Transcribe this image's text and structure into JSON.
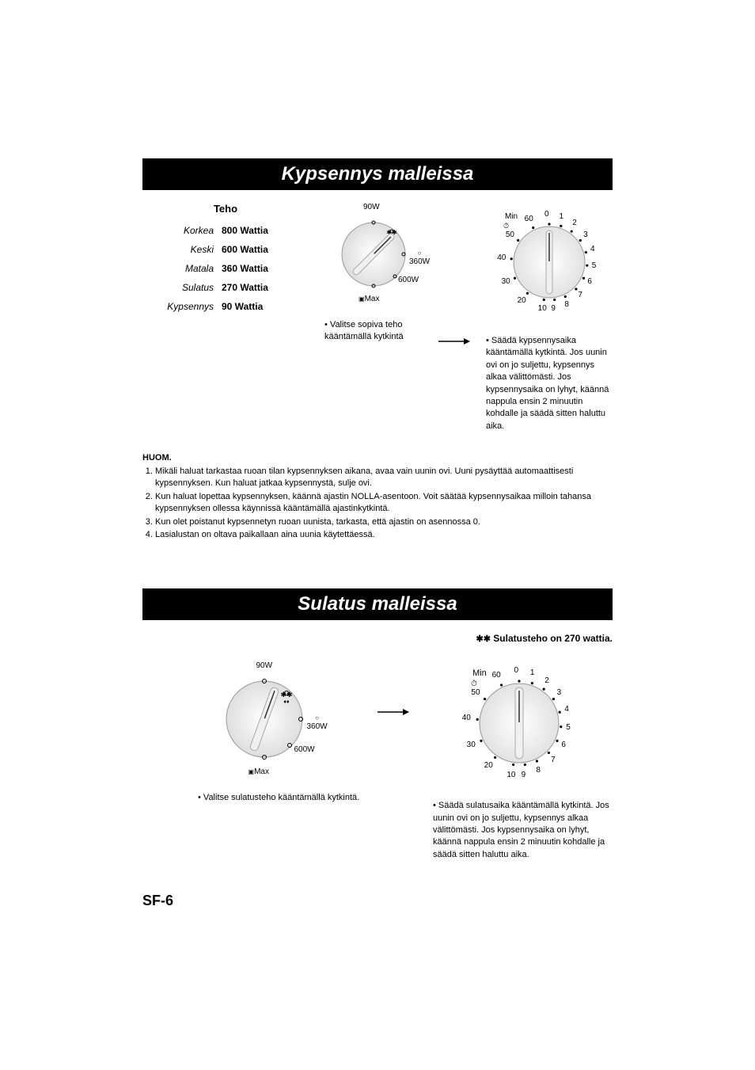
{
  "section1": {
    "title": "Kypsennys malleissa",
    "teho_header": "Teho",
    "power_rows": [
      {
        "label": "Korkea",
        "value": "800 Wattia"
      },
      {
        "label": "Keski",
        "value": "600 Wattia"
      },
      {
        "label": "Matala",
        "value": "360 Wattia"
      },
      {
        "label": "Sulatus",
        "value": "270 Wattia"
      },
      {
        "label": "Kypsennys",
        "value": "90 Wattia"
      }
    ],
    "power_dial": {
      "labels": {
        "top": "90W",
        "right_mid": "360W",
        "bottom_right": "600W",
        "bottom": "Max"
      },
      "pointer_angle_deg": 45
    },
    "timer_dial": {
      "title": "Min",
      "outer_marks": [
        "0",
        "1",
        "2",
        "3",
        "4",
        "5",
        "6",
        "7",
        "8",
        "9",
        "10",
        "20",
        "30",
        "40",
        "50",
        "60"
      ]
    },
    "power_instruction": "Valitse sopiva teho kääntämällä kytkintä",
    "timer_instruction": "Säädä kypsennysaika kääntämällä kytkintä. Jos uunin ovi on jo suljettu, kypsennys alkaa välittömästi. Jos kypsennysaika on lyhyt, käännä nappula ensin 2 minuutin kohdalle ja säädä sitten haluttu aika."
  },
  "notes": {
    "header": "HUOM.",
    "items": [
      "Mikäli haluat tarkastaa ruoan tilan kypsennyksen aikana, avaa vain uunin ovi. Uuni pysäyttää automaattisesti kypsennyksen. Kun haluat jatkaa kypsennystä, sulje ovi.",
      "Kun haluat lopettaa kypsennyksen, käännä ajastin NOLLA-asentoon. Voit säätää kypsennysaikaa milloin tahansa kypsennyksen ollessa käynnissä kääntämällä ajastinkytkintä.",
      "Kun olet poistanut kypsennetyn ruoan uunista, tarkasta, että ajastin on asennossa 0.",
      "Lasialustan on oltava paikallaan aina uunia käytettäessä."
    ]
  },
  "section2": {
    "title": "Sulatus malleissa",
    "defrost_header": "Sulatusteho on 270 wattia.",
    "power_dial": {
      "labels": {
        "top": "90W",
        "right_mid": "360W",
        "bottom_right": "600W",
        "bottom": "Max"
      },
      "pointer_angle_deg": 20
    },
    "power_instruction": "Valitse sulatusteho kääntämällä kytkintä.",
    "timer_instruction": "Säädä sulatusaika kääntämällä kytkintä. Jos uunin ovi on jo suljettu, kypsennys alkaa välittömästi. Jos kypsennysaika on lyhyt, käännä nappula ensin 2 minuutin kohdalle ja säädä sitten haluttu aika."
  },
  "page_number": "SF-6",
  "style": {
    "band_bg": "#000000",
    "band_fg": "#ffffff",
    "dial_fill": "#e8e8e8",
    "dial_light": "#ffffff",
    "text_color": "#000000"
  }
}
